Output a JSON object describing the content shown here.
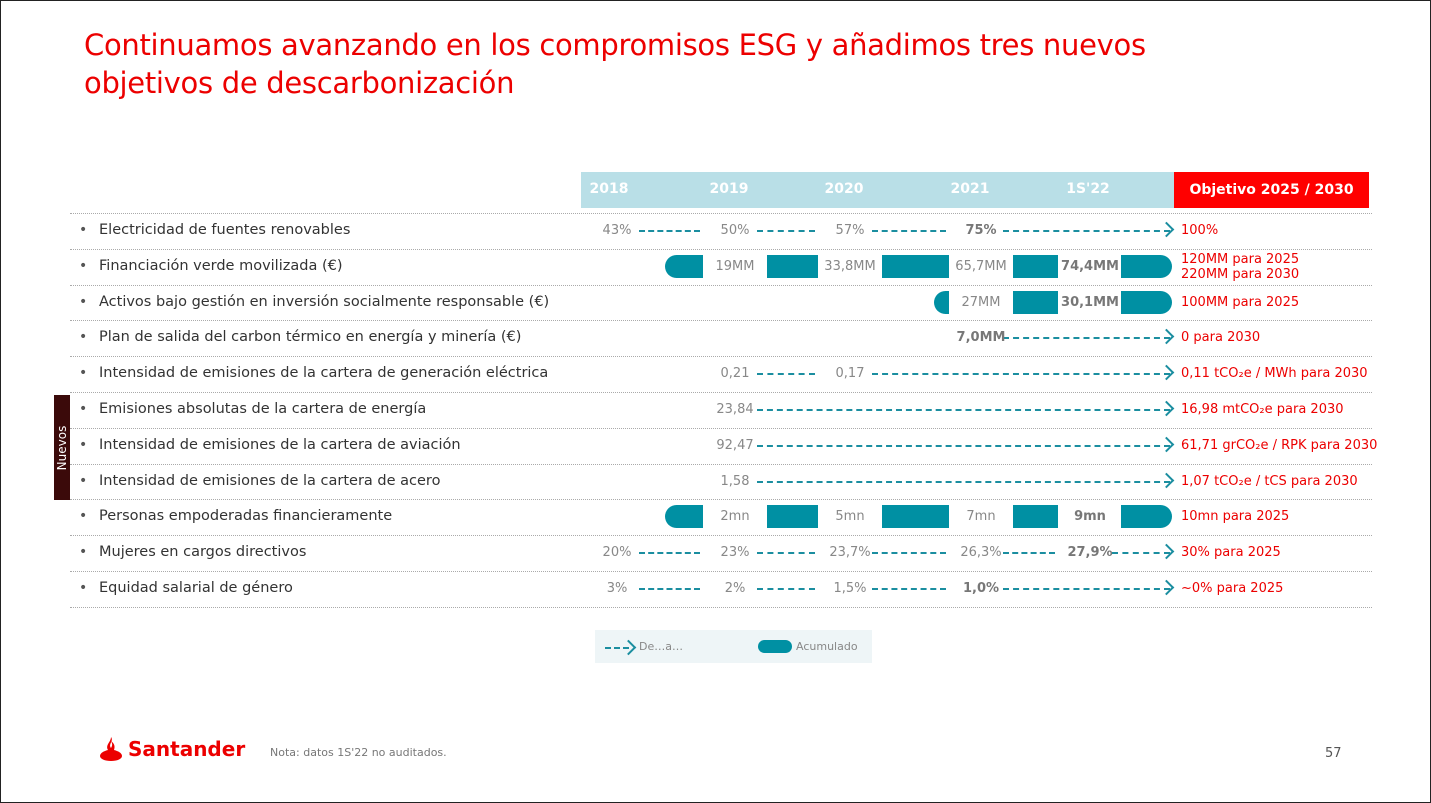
{
  "title_line1": "Continuamos avanzando en los compromisos ESG y añadimos tres nuevos",
  "title_line2": "objetivos de descarbonización",
  "columns": [
    "2018",
    "2019",
    "2020",
    "2021",
    "1S'22"
  ],
  "objective_header": "Objetivo 2025 / 2030",
  "new_label": "Nuevos",
  "colors": {
    "red": "#ec0000",
    "teal": "#0090a3",
    "header": "#b9dfe7"
  },
  "rows": [
    {
      "label": "Electricidad de fuentes renovables",
      "type": "arrow",
      "values": [
        "43%",
        "50%",
        "57%",
        "75%",
        null
      ],
      "bold": [
        3
      ],
      "target": [
        "100%"
      ]
    },
    {
      "label": "Financiación verde movilizada (€)",
      "type": "bar",
      "values": [
        null,
        "19MM",
        "33,8MM",
        "65,7MM",
        "74,4MM"
      ],
      "bold": [
        4
      ],
      "target": [
        "120MM para 2025",
        "220MM para 2030"
      ]
    },
    {
      "label": "Activos bajo gestión en inversión socialmente responsable (€)",
      "type": "bar",
      "values": [
        null,
        null,
        null,
        "27MM",
        "30,1MM"
      ],
      "bold": [
        4
      ],
      "target": [
        "100MM para 2025"
      ]
    },
    {
      "label": "Plan de salida del carbon térmico en energía y minería (€)",
      "type": "arrow",
      "values": [
        null,
        null,
        null,
        "7,0MM",
        null
      ],
      "bold": [
        3
      ],
      "target": [
        "0 para 2030"
      ]
    },
    {
      "label": "Intensidad de emisiones de la cartera de generación eléctrica",
      "type": "arrow",
      "values": [
        null,
        "0,21",
        "0,17",
        null,
        null
      ],
      "bold": [],
      "target": [
        "0,11 tCO₂e / MWh  para 2030"
      ]
    },
    {
      "label": "Emisiones absolutas de la cartera de energía",
      "type": "arrow",
      "values": [
        null,
        "23,84",
        null,
        null,
        null
      ],
      "bold": [],
      "target": [
        "16,98 mtCO₂e para 2030"
      ]
    },
    {
      "label": "Intensidad de emisiones de la cartera de aviación",
      "type": "arrow",
      "values": [
        null,
        "92,47",
        null,
        null,
        null
      ],
      "bold": [],
      "target": [
        "61,71 grCO₂e / RPK para 2030"
      ]
    },
    {
      "label": "Intensidad de emisiones de la cartera de acero",
      "type": "arrow",
      "values": [
        null,
        "1,58",
        null,
        null,
        null
      ],
      "bold": [],
      "target": [
        "1,07 tCO₂e / tCS para 2030"
      ]
    },
    {
      "label": "Personas empoderadas financieramente",
      "type": "bar",
      "values": [
        null,
        "2mn",
        "5mn",
        "7mn",
        "9mn"
      ],
      "bold": [
        4
      ],
      "target": [
        "10mn para 2025"
      ]
    },
    {
      "label": "Mujeres en cargos directivos",
      "type": "arrow",
      "values": [
        "20%",
        "23%",
        "23,7%",
        "26,3%",
        "27,9%"
      ],
      "bold": [
        4
      ],
      "target": [
        "30% para 2025"
      ]
    },
    {
      "label": "Equidad salarial de género",
      "type": "arrow",
      "values": [
        "3%",
        "2%",
        "1,5%",
        "1,0%",
        null
      ],
      "bold": [
        3
      ],
      "target": [
        "~0% para 2025"
      ]
    }
  ],
  "legend": {
    "arrow_label": "De…a…",
    "bar_label": "Acumulado"
  },
  "footer": {
    "brand": "Santander",
    "note": "Nota: datos 1S'22 no auditados.",
    "page": "57"
  }
}
